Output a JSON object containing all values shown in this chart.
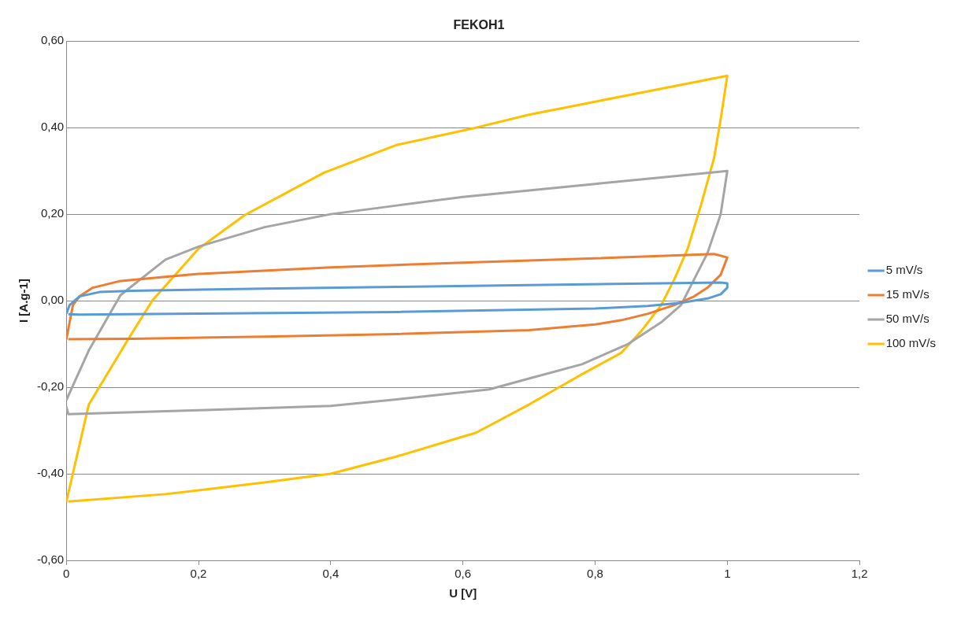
{
  "chart_data": {
    "type": "line",
    "title": "FEKOH1",
    "xlabel": "U [V]",
    "ylabel": "I [A.g-1]",
    "xlim": [
      0,
      1.2
    ],
    "xticks": [
      0,
      {
        "value": 0.2,
        "label": "0,2"
      },
      {
        "value": 0.4,
        "label": "0,4"
      },
      {
        "value": 0.6,
        "label": "0,6"
      },
      {
        "value": 0.8,
        "label": "0,8"
      },
      1,
      {
        "value": 1.2,
        "label": "1,2"
      }
    ],
    "ylim": [
      -0.6,
      0.6
    ],
    "yticks": [
      {
        "value": -0.6,
        "label": "-0,60"
      },
      {
        "value": -0.4,
        "label": "-0,40"
      },
      {
        "value": -0.2,
        "label": "-0,20"
      },
      {
        "value": 0,
        "label": "0,00"
      },
      {
        "value": 0.2,
        "label": "0,20"
      },
      {
        "value": 0.4,
        "label": "0,40"
      },
      {
        "value": 0.6,
        "label": "0,60"
      }
    ],
    "grid": "y",
    "legend": "right",
    "marker": "none",
    "line_style": "solid",
    "series": [
      {
        "name": "5 mV/s",
        "color": "#5b9bd5",
        "x": [
          0,
          0.005,
          0.02,
          0.05,
          0.1,
          0.3,
          0.5,
          0.7,
          0.9,
          0.99,
          1,
          1,
          0.99,
          0.97,
          0.93,
          0.88,
          0.8,
          0.5,
          0.2,
          0.02,
          0.003
        ],
        "values": [
          -0.03,
          -0.01,
          0.01,
          0.02,
          0.023,
          0.028,
          0.032,
          0.036,
          0.04,
          0.042,
          0.04,
          0.03,
          0.015,
          0.005,
          -0.005,
          -0.012,
          -0.018,
          -0.026,
          -0.03,
          -0.032,
          -0.031
        ]
      },
      {
        "name": "15 mV/s",
        "color": "#ed7d31",
        "x": [
          0,
          0.005,
          0.01,
          0.02,
          0.04,
          0.08,
          0.15,
          0.2,
          0.4,
          0.6,
          0.8,
          0.98,
          1,
          0.99,
          0.97,
          0.95,
          0.92,
          0.88,
          0.84,
          0.8,
          0.7,
          0.5,
          0.3,
          0.1,
          0.003
        ],
        "values": [
          -0.09,
          -0.05,
          -0.01,
          0.01,
          0.03,
          0.045,
          0.055,
          0.062,
          0.077,
          0.088,
          0.098,
          0.108,
          0.1,
          0.06,
          0.03,
          0.01,
          -0.01,
          -0.03,
          -0.045,
          -0.055,
          -0.068,
          -0.077,
          -0.083,
          -0.088,
          -0.089
        ]
      },
      {
        "name": "50 mV/s",
        "color": "#a5a5a5",
        "x": [
          0,
          0.034,
          0.082,
          0.15,
          0.2,
          0.3,
          0.4,
          0.5,
          0.6,
          0.7,
          0.8,
          0.9,
          1,
          0.99,
          0.97,
          0.95,
          0.93,
          0.9,
          0.85,
          0.78,
          0.7,
          0.64,
          0.5,
          0.4,
          0.2,
          0.003,
          0
        ],
        "values": [
          -0.23,
          -0.115,
          0.013,
          0.095,
          0.125,
          0.17,
          0.2,
          0.22,
          0.24,
          0.255,
          0.27,
          0.285,
          0.3,
          0.2,
          0.11,
          0.05,
          -0.01,
          -0.05,
          -0.1,
          -0.147,
          -0.18,
          -0.205,
          -0.228,
          -0.243,
          -0.253,
          -0.262,
          -0.245
        ]
      },
      {
        "name": "100 mV/s",
        "color": "#ffc000",
        "x": [
          0,
          0.034,
          0.096,
          0.13,
          0.2,
          0.27,
          0.39,
          0.5,
          0.62,
          0.7,
          0.8,
          0.9,
          1,
          0.99,
          0.98,
          0.96,
          0.94,
          0.92,
          0.9,
          0.87,
          0.84,
          0.78,
          0.74,
          0.7,
          0.62,
          0.5,
          0.4,
          0.3,
          0.15,
          0.003
        ],
        "values": [
          -0.465,
          -0.24,
          -0.083,
          0,
          0.12,
          0.198,
          0.296,
          0.36,
          0.4,
          0.43,
          0.46,
          0.49,
          0.52,
          0.42,
          0.33,
          0.22,
          0.12,
          0.05,
          -0.01,
          -0.07,
          -0.12,
          -0.17,
          -0.205,
          -0.24,
          -0.305,
          -0.36,
          -0.4,
          -0.42,
          -0.447,
          -0.464
        ]
      }
    ]
  }
}
